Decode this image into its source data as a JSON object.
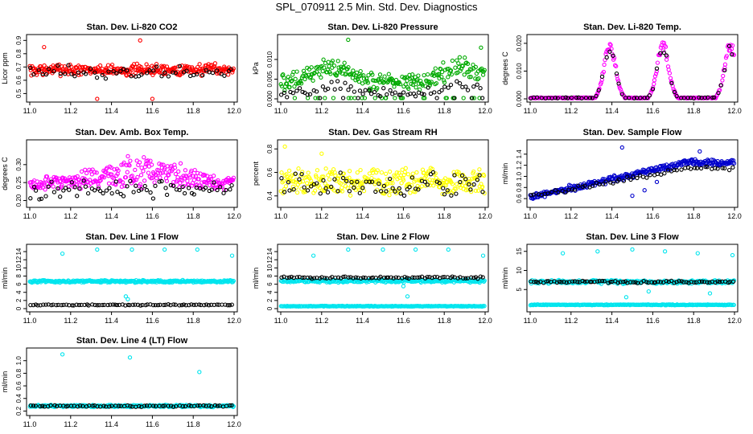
{
  "figure": {
    "title": "SPL_070911  2.5 Min. Std. Dev. Diagnostics"
  },
  "chart_data": [
    {
      "type": "scatter",
      "title": "Stan. Dev. Li-820 CO2",
      "ylabel": "Licor ppm",
      "xlim": [
        11.0,
        12.0
      ],
      "ylim": [
        0.46,
        0.92
      ],
      "xticks": [
        "11.0",
        "11.2",
        "11.4",
        "11.6",
        "11.8",
        "12.0"
      ],
      "yticks": [
        "0.5",
        "0.6",
        "0.7",
        "0.8",
        "0.9"
      ],
      "series": [
        {
          "color": "#ff0000",
          "pattern": "noise",
          "base": 0.68,
          "amp": 0.05,
          "n": 300,
          "outliers": [
            [
              11.07,
              0.85
            ],
            [
              11.54,
              0.9
            ],
            [
              11.33,
              0.46
            ],
            [
              11.6,
              0.46
            ]
          ]
        },
        {
          "color": "#000000",
          "pattern": "noise",
          "base": 0.66,
          "amp": 0.06,
          "n": 55
        }
      ]
    },
    {
      "type": "scatter",
      "title": "Stan. Dev. Li-820 Pressure",
      "ylabel": "kPa",
      "xlim": [
        11.0,
        12.0
      ],
      "ylim": [
        0.0,
        0.0155
      ],
      "xticks": [
        "11.0",
        "11.2",
        "11.4",
        "11.6",
        "11.8",
        "12.0"
      ],
      "yticks": [
        "0.000",
        "0.005",
        "0.010"
      ],
      "series": [
        {
          "color": "#00aa00",
          "pattern": "waves",
          "base": 0.0055,
          "amp": 0.0035,
          "n": 280,
          "outliers": [
            [
              11.33,
              0.015
            ],
            [
              11.98,
              0.013
            ],
            [
              11.15,
              0.008
            ]
          ]
        },
        {
          "color": "#000000",
          "pattern": "waves",
          "base": 0.002,
          "amp": 0.002,
          "n": 70
        }
      ]
    },
    {
      "type": "scatter",
      "title": "Stan. Dev. Li-820 Temp.",
      "ylabel": "degrees C",
      "xlim": [
        11.0,
        12.0
      ],
      "ylim": [
        0.0,
        0.022
      ],
      "xticks": [
        "11.0",
        "11.2",
        "11.4",
        "11.6",
        "11.8",
        "12.0"
      ],
      "yticks": [
        "0.000",
        "0.010",
        "0.020"
      ],
      "series": [
        {
          "color": "#ff00ff",
          "pattern": "peaks",
          "peaks": [
            11.39,
            11.65,
            11.98
          ],
          "peak": 0.02,
          "n": 260
        },
        {
          "color": "#000000",
          "pattern": "peaks",
          "peaks": [
            11.39,
            11.65,
            11.98
          ],
          "peak": 0.019,
          "n": 60
        }
      ]
    },
    {
      "type": "scatter",
      "title": "Stan. Dev. Amb. Box Temp.",
      "ylabel": "degrees C",
      "xlim": [
        11.0,
        12.0
      ],
      "ylim": [
        0.19,
        0.36
      ],
      "xticks": [
        "11.0",
        "11.2",
        "11.4",
        "11.6",
        "11.8",
        "12.0"
      ],
      "yticks": [
        "0.20",
        "0.25",
        "0.30"
      ],
      "series": [
        {
          "color": "#ff00ff",
          "pattern": "hump",
          "base": 0.245,
          "amp": 0.07,
          "n": 300
        },
        {
          "color": "#000000",
          "pattern": "noise",
          "base": 0.23,
          "amp": 0.03,
          "n": 70
        }
      ]
    },
    {
      "type": "scatter",
      "title": "Stan. Dev. Gas Stream RH",
      "ylabel": "percent",
      "xlim": [
        11.0,
        12.0
      ],
      "ylim": [
        0.33,
        0.85
      ],
      "xticks": [
        "11.0",
        "11.2",
        "11.4",
        "11.6",
        "11.8",
        "12.0"
      ],
      "yticks": [
        "0.4",
        "0.6",
        "0.8"
      ],
      "series": [
        {
          "color": "#ffff00",
          "pattern": "noise",
          "base": 0.52,
          "amp": 0.13,
          "n": 300,
          "outliers": [
            [
              11.02,
              0.82
            ],
            [
              11.2,
              0.76
            ]
          ]
        },
        {
          "color": "#000000",
          "pattern": "noise",
          "base": 0.5,
          "amp": 0.12,
          "n": 70
        }
      ]
    },
    {
      "type": "scatter",
      "title": "Stan. Dev. Sample Flow",
      "ylabel": "ml/min",
      "xlim": [
        11.0,
        12.0
      ],
      "ylim": [
        0.5,
        1.6
      ],
      "xticks": [
        "11.0",
        "11.2",
        "11.4",
        "11.6",
        "11.8",
        "12.0"
      ],
      "yticks": [
        "0.6",
        "0.8",
        "1.0",
        "1.2",
        "1.4"
      ],
      "series": [
        {
          "color": "#0000cc",
          "pattern": "trend",
          "from": 0.62,
          "to": 1.25,
          "amp": 0.07,
          "n": 300,
          "outliers": [
            [
              11.45,
              1.52
            ],
            [
              11.5,
              0.65
            ],
            [
              11.56,
              0.75
            ],
            [
              11.83,
              1.45
            ],
            [
              11.62,
              0.9
            ]
          ]
        },
        {
          "color": "#000000",
          "pattern": "trend",
          "from": 0.63,
          "to": 1.15,
          "amp": 0.05,
          "n": 60
        }
      ]
    },
    {
      "type": "scatter",
      "title": "Stan. Dev. Line 1 Flow",
      "ylabel": "ml/min",
      "xlim": [
        11.0,
        12.0
      ],
      "ylim": [
        0,
        15
      ],
      "xticks": [
        "11.0",
        "11.2",
        "11.4",
        "11.6",
        "11.8",
        "12.0"
      ],
      "yticks": [
        "0",
        "2",
        "4",
        "6",
        "8",
        "10",
        "12",
        "14"
      ],
      "series": [
        {
          "color": "#00e5ee",
          "pattern": "noise",
          "base": 6.7,
          "amp": 0.35,
          "n": 300,
          "outliers": [
            [
              11.16,
              13.5
            ],
            [
              11.33,
              14.5
            ],
            [
              11.5,
              14.5
            ],
            [
              11.66,
              14.5
            ],
            [
              11.82,
              14.5
            ],
            [
              11.99,
              13
            ],
            [
              11.47,
              3
            ],
            [
              11.48,
              2.3
            ]
          ]
        },
        {
          "color": "#000000",
          "pattern": "noise",
          "base": 0.9,
          "amp": 0.15,
          "n": 80
        }
      ]
    },
    {
      "type": "scatter",
      "title": "Stan. Dev. Line 2 Flow",
      "ylabel": "ml/min",
      "xlim": [
        11.0,
        12.0
      ],
      "ylim": [
        0,
        15
      ],
      "xticks": [
        "11.0",
        "11.2",
        "11.4",
        "11.6",
        "11.8",
        "12.0"
      ],
      "yticks": [
        "0",
        "2",
        "4",
        "6",
        "8",
        "10",
        "12",
        "14"
      ],
      "series": [
        {
          "color": "#00e5ee",
          "pattern": "noise",
          "base": 6.8,
          "amp": 0.45,
          "n": 260,
          "outliers": [
            [
              11.16,
              13
            ],
            [
              11.33,
              14.5
            ],
            [
              11.5,
              14.5
            ],
            [
              11.66,
              14.5
            ],
            [
              11.82,
              14.5
            ],
            [
              11.99,
              13
            ],
            [
              11.6,
              5.5
            ],
            [
              11.62,
              3
            ]
          ]
        },
        {
          "color": "#00e5ee",
          "pattern": "noise",
          "base": 0.6,
          "amp": 0.1,
          "n": 220
        },
        {
          "color": "#000000",
          "pattern": "noise",
          "base": 7.6,
          "amp": 0.3,
          "n": 80
        }
      ]
    },
    {
      "type": "scatter",
      "title": "Stan. Dev. Line 3 Flow",
      "ylabel": "ml/min",
      "xlim": [
        11.0,
        12.0
      ],
      "ylim": [
        0,
        16
      ],
      "xticks": [
        "11.0",
        "11.2",
        "11.4",
        "11.6",
        "11.8",
        "12.0"
      ],
      "yticks": [
        "5",
        "10",
        "15"
      ],
      "series": [
        {
          "color": "#00e5ee",
          "pattern": "noise",
          "base": 7.0,
          "amp": 0.55,
          "n": 260,
          "outliers": [
            [
              11.16,
              14.5
            ],
            [
              11.33,
              15
            ],
            [
              11.5,
              15.5
            ],
            [
              11.66,
              15
            ],
            [
              11.82,
              14.5
            ],
            [
              11.99,
              14
            ],
            [
              11.47,
              3
            ],
            [
              11.58,
              4.5
            ],
            [
              11.88,
              4
            ]
          ]
        },
        {
          "color": "#00e5ee",
          "pattern": "noise",
          "base": 1.0,
          "amp": 0.12,
          "n": 220
        },
        {
          "color": "#000000",
          "pattern": "noise",
          "base": 7.0,
          "amp": 0.35,
          "n": 80
        }
      ]
    },
    {
      "type": "scatter",
      "title": "Stan. Dev. Line 4 (LT) Flow",
      "ylabel": "ml/min",
      "xlim": [
        11.0,
        12.0
      ],
      "ylim": [
        0.18,
        1.15
      ],
      "xticks": [
        "11.0",
        "11.2",
        "11.4",
        "11.6",
        "11.8",
        "12.0"
      ],
      "yticks": [
        "0.2",
        "0.4",
        "0.6",
        "0.8",
        "1.0"
      ],
      "series": [
        {
          "color": "#00e5ee",
          "pattern": "noise",
          "base": 0.28,
          "amp": 0.02,
          "n": 320,
          "outliers": [
            [
              11.16,
              1.1
            ],
            [
              11.49,
              1.05
            ],
            [
              11.83,
              0.82
            ]
          ]
        },
        {
          "color": "#000000",
          "pattern": "noise",
          "base": 0.28,
          "amp": 0.015,
          "n": 70
        }
      ]
    }
  ]
}
